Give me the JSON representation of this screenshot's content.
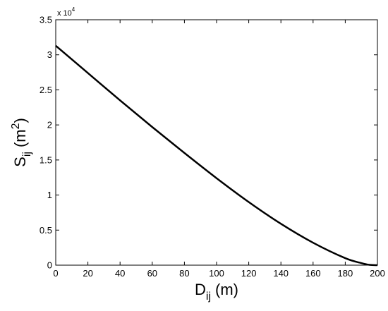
{
  "chart_data": {
    "type": "line",
    "xlabel": {
      "main": "D",
      "sub": "ij",
      "unit": "(m)"
    },
    "ylabel": {
      "main": "S",
      "sub": "ij",
      "unit_open": "(m",
      "unit_sup": "2",
      "unit_close": ")"
    },
    "y_multiplier": {
      "base": "x 10",
      "exponent": "4"
    },
    "xlim": [
      0,
      200
    ],
    "ylim": [
      0,
      35000
    ],
    "x_ticks": [
      0,
      20,
      40,
      60,
      80,
      100,
      120,
      140,
      160,
      180,
      200
    ],
    "x_tick_labels": [
      "0",
      "20",
      "40",
      "60",
      "80",
      "100",
      "120",
      "140",
      "160",
      "180",
      "200"
    ],
    "y_ticks": [
      0,
      5000,
      10000,
      15000,
      20000,
      25000,
      30000,
      35000
    ],
    "y_tick_labels": [
      "0",
      "0.5",
      "1",
      "1.5",
      "2",
      "2.5",
      "3",
      "3.5"
    ],
    "grid": false,
    "legend": "none",
    "line_color": "#000000",
    "x": [
      0,
      20,
      40,
      60,
      80,
      100,
      120,
      140,
      160,
      180,
      190,
      195,
      200
    ],
    "y": [
      31300,
      27400,
      23500,
      19700,
      16000,
      12400,
      9000,
      5900,
      3200,
      1000,
      300,
      50,
      0
    ]
  }
}
